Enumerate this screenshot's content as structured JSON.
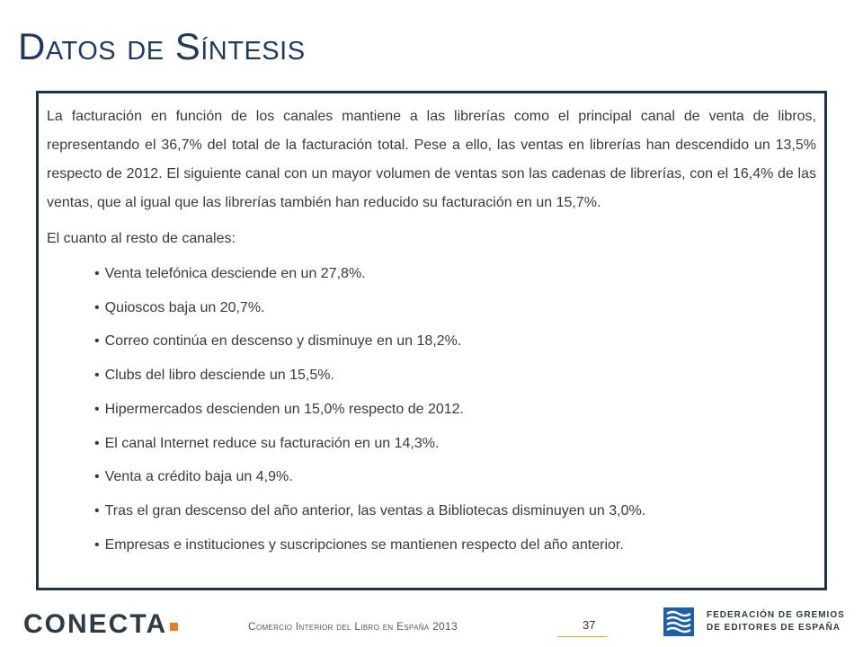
{
  "title": "Datos de Síntesis",
  "intro_paragraph": "La facturación en función de los canales mantiene a las librerías como el principal canal de venta de libros, representando el 36,7% del total de la facturación total. Pese a ello, las ventas en librerías han descendido un 13,5% respecto de 2012. El siguiente canal con un mayor volumen de ventas son las cadenas de librerías, con el 16,4% de las ventas, que al igual que las librerías también han reducido su facturación en un 15,7%.",
  "lead_text": "El cuanto al resto de canales:",
  "bullet_symbol": "•",
  "bullets": [
    "Venta telefónica desciende en un 27,8%.",
    "Quioscos baja un 20,7%.",
    "Correo continúa en descenso y disminuye en un 18,2%.",
    "Clubs del libro desciende un 15,5%.",
    "Hipermercados descienden un 15,0% respecto de 2012.",
    "El canal Internet reduce su facturación en un 14,3%.",
    "Venta a crédito baja un 4,9%.",
    "Tras el gran descenso del año anterior, las ventas a Bibliotecas disminuyen un 3,0%.",
    "Empresas e instituciones y suscripciones se mantienen respecto del año anterior."
  ],
  "footer": {
    "logo_text": "CONECTA",
    "publication": "Comercio Interior del Libro en España 2013",
    "page_number": "37",
    "federation_line1": "FEDERACIÓN DE GREMIOS",
    "federation_line2": "DE EDITORES DE ESPAÑA"
  },
  "colors": {
    "title": "#1f3a5f",
    "border": "#1f3349",
    "accent": "#e67e22",
    "federation_blue": "#1f5fa8"
  },
  "icons": {
    "conecta_logo": "conecta-logo-icon",
    "federation_logo": "federation-logo-icon"
  }
}
